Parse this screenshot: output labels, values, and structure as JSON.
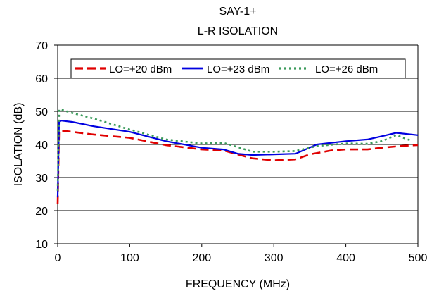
{
  "chart_data": {
    "type": "line",
    "title": "SAY-1+",
    "subtitle": "L-R ISOLATION",
    "xlabel": "FREQUENCY (MHz)",
    "ylabel": "ISOLATION (dB)",
    "xlim": [
      0,
      500
    ],
    "ylim": [
      10,
      70
    ],
    "xticks": [
      0,
      100,
      200,
      300,
      400,
      500
    ],
    "yticks": [
      10,
      20,
      30,
      40,
      50,
      60,
      70
    ],
    "grid": "horizontal",
    "legend_position": "top",
    "series": [
      {
        "name": "LO=+20 dBm",
        "color": "#e00000",
        "dash": "long-dash",
        "x": [
          0,
          2,
          5,
          20,
          50,
          100,
          150,
          200,
          230,
          250,
          270,
          300,
          330,
          350,
          380,
          400,
          430,
          450,
          480,
          500
        ],
        "y": [
          22,
          44,
          44.2,
          43.8,
          43,
          42,
          39.8,
          38.5,
          38.2,
          37,
          35.8,
          35.2,
          35.5,
          37,
          38.2,
          38.5,
          38.5,
          39,
          39.6,
          39.8
        ]
      },
      {
        "name": "LO=+23 dBm",
        "color": "#0000e0",
        "dash": "solid",
        "x": [
          0,
          2,
          5,
          20,
          50,
          100,
          150,
          200,
          230,
          250,
          270,
          300,
          330,
          360,
          400,
          430,
          450,
          470,
          500
        ],
        "y": [
          24,
          47,
          47.2,
          46.8,
          45.5,
          43.8,
          41,
          39,
          38.5,
          37.2,
          36.8,
          37,
          37.2,
          40,
          41,
          41.5,
          42.5,
          43.5,
          42.8
        ]
      },
      {
        "name": "LO=+26 dBm",
        "color": "#3a9a5a",
        "dash": "dotted",
        "x": [
          0,
          2,
          5,
          20,
          50,
          100,
          150,
          200,
          230,
          250,
          270,
          300,
          330,
          360,
          400,
          430,
          450,
          470,
          490
        ],
        "y": [
          26,
          50.5,
          50.5,
          49.5,
          47.8,
          44.5,
          41.5,
          40.3,
          40.5,
          39.2,
          37.8,
          37.8,
          38,
          39.5,
          40.3,
          40.2,
          41,
          42.8,
          41.2
        ]
      }
    ]
  }
}
